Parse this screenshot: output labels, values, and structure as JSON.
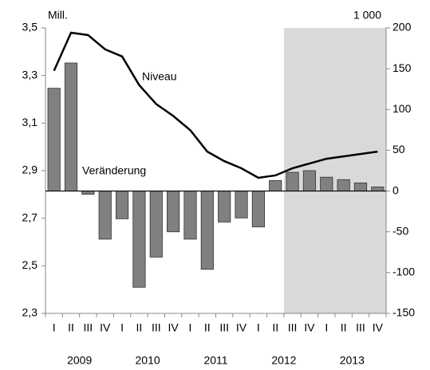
{
  "chart_data": {
    "type": "bar-line",
    "left_unit": "Mill.",
    "right_unit": "1 000",
    "categories": [
      "I",
      "II",
      "III",
      "IV",
      "I",
      "II",
      "III",
      "IV",
      "I",
      "II",
      "III",
      "IV",
      "I",
      "II",
      "III",
      "IV",
      "I",
      "II",
      "III",
      "IV"
    ],
    "years": [
      "2009",
      "2010",
      "2011",
      "2012",
      "2013"
    ],
    "shaded_from_index": 14,
    "shade_color": "#d9d9d9",
    "series": [
      {
        "name": "Veränderung",
        "type": "bar",
        "axis": "y2",
        "color": "#808080",
        "values": [
          126,
          157,
          -4,
          -59,
          -34,
          -118,
          -81,
          -50,
          -59,
          -96,
          -38,
          -33,
          -44,
          13,
          23,
          25,
          17,
          14,
          10,
          5
        ]
      },
      {
        "name": "Niveau",
        "type": "line",
        "axis": "y",
        "color": "#000000",
        "values": [
          3.32,
          3.48,
          3.47,
          3.41,
          3.38,
          3.26,
          3.18,
          3.13,
          3.07,
          2.98,
          2.94,
          2.91,
          2.87,
          2.88,
          2.91,
          2.93,
          2.95,
          2.96,
          2.97,
          2.98
        ]
      }
    ],
    "ylim": [
      2.3,
      3.5
    ],
    "yticks": [
      {
        "value": 2.3,
        "label": "2,3"
      },
      {
        "value": 2.5,
        "label": "2,5"
      },
      {
        "value": 2.7,
        "label": "2,7"
      },
      {
        "value": 2.9,
        "label": "2,9"
      },
      {
        "value": 3.1,
        "label": "3,1"
      },
      {
        "value": 3.3,
        "label": "3,3"
      },
      {
        "value": 3.5,
        "label": "3,5"
      }
    ],
    "y2lim": [
      -150,
      200
    ],
    "y2ticks": [
      -150,
      -100,
      -50,
      0,
      50,
      100,
      150,
      200
    ]
  }
}
